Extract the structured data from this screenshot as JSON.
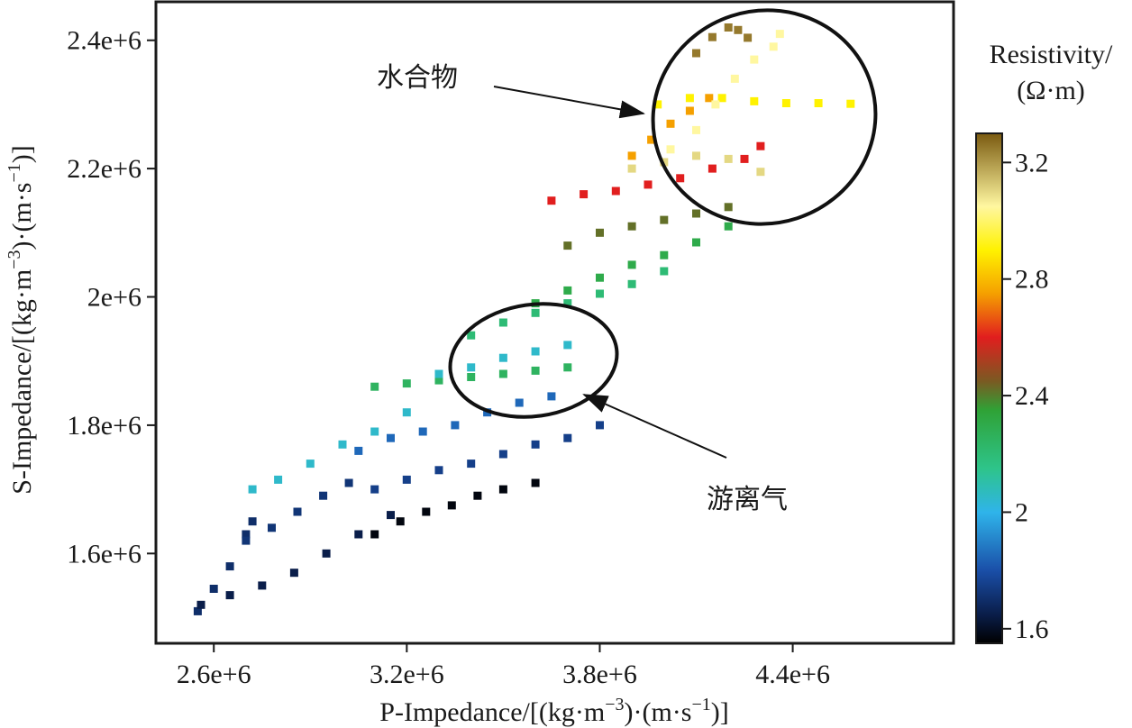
{
  "chart_data": {
    "type": "scatter",
    "xlabel_main": "P-Impedance/[(kg·m",
    "xlabel_sup1": "−3",
    "xlabel_mid": ")·(m·s",
    "xlabel_sup2": "−1",
    "xlabel_end": ")]",
    "ylabel_main": "S-Impedance/[(kg·m",
    "ylabel_sup1": "−3",
    "ylabel_mid": ")·(m·s",
    "ylabel_sup2": "−1",
    "ylabel_end": ")]",
    "xlim": [
      2420000,
      4900000
    ],
    "ylim": [
      1460000,
      2460000
    ],
    "x_ticks": [
      2600000,
      3200000,
      3800000,
      4400000
    ],
    "x_tick_labels": [
      "2.6e+6",
      "3.2e+6",
      "3.8e+6",
      "4.4e+6"
    ],
    "y_ticks": [
      1600000,
      1800000,
      2000000,
      2200000,
      2400000
    ],
    "y_tick_labels": [
      "1.6e+6",
      "1.8e+6",
      "2e+6",
      "2.2e+6",
      "2.4e+6"
    ],
    "colorbar": {
      "title_line1": "Resistivity/",
      "title_line2": "(Ω·m)",
      "range": [
        1.55,
        3.3
      ],
      "ticks": [
        1.6,
        2.0,
        2.4,
        2.8,
        3.2
      ],
      "tick_labels": [
        "1.6",
        "2",
        "2.4",
        "2.8",
        "3.2"
      ],
      "stops": [
        {
          "v": 1.55,
          "c": "#000000"
        },
        {
          "v": 1.65,
          "c": "#0a1e4a"
        },
        {
          "v": 1.8,
          "c": "#1a4fa8"
        },
        {
          "v": 2.0,
          "c": "#2fb4ea"
        },
        {
          "v": 2.15,
          "c": "#2ec48a"
        },
        {
          "v": 2.35,
          "c": "#2fa236"
        },
        {
          "v": 2.45,
          "c": "#7a5a22"
        },
        {
          "v": 2.6,
          "c": "#e11e1e"
        },
        {
          "v": 2.75,
          "c": "#f5a000"
        },
        {
          "v": 2.9,
          "c": "#fff200"
        },
        {
          "v": 3.05,
          "c": "#fff7a0"
        },
        {
          "v": 3.3,
          "c": "#7a5a10"
        }
      ]
    },
    "annotations": [
      {
        "label": "水合物",
        "ellipse_center": [
          4220000,
          2270000
        ],
        "ellipse_radii": [
          320000,
          165000
        ]
      },
      {
        "label": "游离气",
        "ellipse_center": [
          3500000,
          1883000
        ],
        "ellipse_radii": [
          240000,
          90000
        ]
      }
    ],
    "series": [
      {
        "x": [
          2550000,
          2600000,
          2650000,
          2700000,
          2720000
        ],
        "y": [
          1510000,
          1545000,
          1580000,
          1630000,
          1650000
        ],
        "resistivity": 1.7
      },
      {
        "x": [
          2560000,
          2650000,
          2750000,
          2850000,
          2950000,
          3050000,
          3150000
        ],
        "y": [
          1520000,
          1535000,
          1550000,
          1570000,
          1600000,
          1630000,
          1660000
        ],
        "resistivity": 1.65
      },
      {
        "x": [
          2720000,
          2800000,
          2900000,
          3000000,
          3100000,
          3200000
        ],
        "y": [
          1700000,
          1715000,
          1740000,
          1770000,
          1790000,
          1820000
        ],
        "resistivity": 2.05
      },
      {
        "x": [
          2700000,
          2780000,
          2860000,
          2940000,
          3020000
        ],
        "y": [
          1620000,
          1640000,
          1665000,
          1690000,
          1710000
        ],
        "resistivity": 1.72
      },
      {
        "x": [
          3100000,
          3180000,
          3260000,
          3340000,
          3420000,
          3500000,
          3600000
        ],
        "y": [
          1630000,
          1650000,
          1665000,
          1675000,
          1690000,
          1700000,
          1710000
        ],
        "resistivity": 1.57
      },
      {
        "x": [
          3100000,
          3200000,
          3300000,
          3400000,
          3500000,
          3600000,
          3700000,
          3800000
        ],
        "y": [
          1700000,
          1715000,
          1730000,
          1740000,
          1755000,
          1770000,
          1780000,
          1800000
        ],
        "resistivity": 1.75
      },
      {
        "x": [
          3050000,
          3150000,
          3250000,
          3350000,
          3450000,
          3550000,
          3650000
        ],
        "y": [
          1760000,
          1780000,
          1790000,
          1800000,
          1820000,
          1835000,
          1845000
        ],
        "resistivity": 1.85
      },
      {
        "x": [
          3100000,
          3200000,
          3300000,
          3400000,
          3500000,
          3600000,
          3700000
        ],
        "y": [
          1860000,
          1865000,
          1870000,
          1875000,
          1880000,
          1885000,
          1890000
        ],
        "resistivity": 2.25
      },
      {
        "x": [
          3300000,
          3400000,
          3500000,
          3600000,
          3700000
        ],
        "y": [
          1880000,
          1890000,
          1905000,
          1915000,
          1925000
        ],
        "resistivity": 2.05
      },
      {
        "x": [
          3400000,
          3500000,
          3600000,
          3700000,
          3800000,
          3900000,
          4000000
        ],
        "y": [
          1940000,
          1960000,
          1975000,
          1990000,
          2005000,
          2020000,
          2040000
        ],
        "resistivity": 2.2
      },
      {
        "x": [
          3600000,
          3700000,
          3800000,
          3900000,
          4000000,
          4100000,
          4200000
        ],
        "y": [
          1990000,
          2010000,
          2030000,
          2050000,
          2065000,
          2085000,
          2110000
        ],
        "resistivity": 2.3
      },
      {
        "x": [
          3700000,
          3800000,
          3900000,
          4000000,
          4100000,
          4200000
        ],
        "y": [
          2080000,
          2100000,
          2110000,
          2120000,
          2130000,
          2140000
        ],
        "resistivity": 2.42
      },
      {
        "x": [
          3650000,
          3750000,
          3850000,
          3950000,
          4050000,
          4150000,
          4250000,
          4300000
        ],
        "y": [
          2150000,
          2160000,
          2165000,
          2175000,
          2185000,
          2200000,
          2215000,
          2235000
        ],
        "resistivity": 2.6
      },
      {
        "x": [
          3900000,
          3960000,
          4020000,
          4080000,
          4140000
        ],
        "y": [
          2220000,
          2245000,
          2270000,
          2290000,
          2310000
        ],
        "resistivity": 2.75
      },
      {
        "x": [
          3980000,
          4080000,
          4180000,
          4280000,
          4380000,
          4480000,
          4580000
        ],
        "y": [
          2300000,
          2310000,
          2310000,
          2305000,
          2302000,
          2302000,
          2301000
        ],
        "resistivity": 2.9
      },
      {
        "x": [
          4020000,
          4100000,
          4160000,
          4220000,
          4280000,
          4340000,
          4360000
        ],
        "y": [
          2230000,
          2260000,
          2300000,
          2340000,
          2370000,
          2390000,
          2410000
        ],
        "resistivity": 3.05
      },
      {
        "x": [
          4100000,
          4150000,
          4200000,
          4230000,
          4260000
        ],
        "y": [
          2380000,
          2405000,
          2420000,
          2416000,
          2404000
        ],
        "resistivity": 3.25
      },
      {
        "x": [
          3900000,
          4000000,
          4100000,
          4200000,
          4300000
        ],
        "y": [
          2200000,
          2210000,
          2220000,
          2215000,
          2195000
        ],
        "resistivity": 3.1
      }
    ]
  },
  "colors": {
    "axis": "#1a1a1a",
    "ellipse": "#111111"
  }
}
